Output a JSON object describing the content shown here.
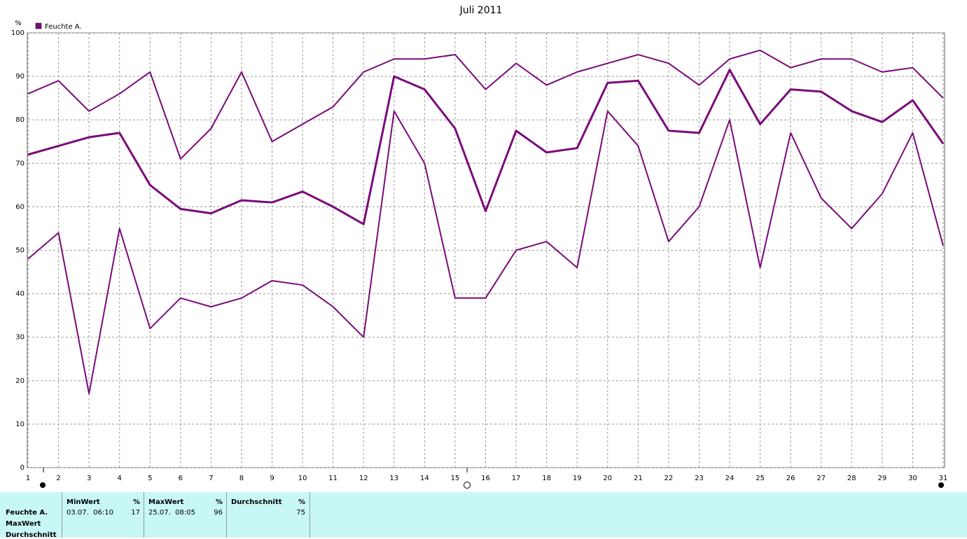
{
  "chart_data": {
    "type": "line",
    "title": "Juli 2011",
    "y_label": "%",
    "legend": "Feuchte A.",
    "x": [
      1,
      2,
      3,
      4,
      5,
      6,
      7,
      8,
      9,
      10,
      11,
      12,
      13,
      14,
      15,
      16,
      17,
      18,
      19,
      20,
      21,
      22,
      23,
      24,
      25,
      26,
      27,
      28,
      29,
      30,
      31
    ],
    "xlim": [
      1,
      31
    ],
    "xticks": [
      1,
      2,
      3,
      4,
      5,
      6,
      7,
      8,
      9,
      10,
      11,
      12,
      13,
      14,
      15,
      16,
      17,
      18,
      19,
      20,
      21,
      22,
      23,
      24,
      25,
      26,
      27,
      28,
      29,
      30,
      31
    ],
    "ylim": [
      0,
      100
    ],
    "yticks": [
      0,
      10,
      20,
      30,
      40,
      50,
      60,
      70,
      80,
      90,
      100
    ],
    "grid": true,
    "series": [
      {
        "color": "#7a0a7a",
        "width": 2,
        "values": [
          86,
          89,
          82,
          86,
          91,
          71,
          78,
          91,
          75,
          79,
          83,
          91,
          94,
          94,
          95,
          87,
          93,
          88,
          91,
          93,
          95,
          93,
          88,
          94,
          96,
          92,
          94,
          94,
          91,
          92,
          85
        ]
      },
      {
        "color": "#7a0a7a",
        "width": 3,
        "values": [
          72,
          74,
          76,
          77,
          65,
          59.5,
          58.5,
          61.5,
          61,
          63.5,
          60,
          56,
          90,
          87,
          78,
          59,
          77.5,
          72.5,
          73.5,
          88.5,
          89,
          77.5,
          77,
          91.5,
          79,
          87,
          86.5,
          82,
          79.5,
          84.5,
          74.5
        ]
      },
      {
        "color": "#7a0a7a",
        "width": 2,
        "values": [
          48,
          54,
          17,
          55,
          32,
          39,
          37,
          39,
          43,
          42,
          37,
          30,
          82,
          70,
          39,
          39,
          50,
          52,
          46,
          82,
          74,
          52,
          60,
          80,
          46,
          77,
          62,
          55,
          63,
          77,
          51
        ]
      }
    ]
  },
  "stats_table": {
    "row_labels": [
      "Feuchte A.",
      "MaxWert",
      "Durchschnitt"
    ],
    "columns": [
      {
        "header": "MinWert",
        "unit": "%",
        "time": "03.07.  06:10",
        "value": 17
      },
      {
        "header": "MaxWert",
        "unit": "%",
        "time": "25.07.  08:05",
        "value": 96
      },
      {
        "header": "Durchschnitt",
        "unit": "%",
        "value": 75
      }
    ]
  }
}
